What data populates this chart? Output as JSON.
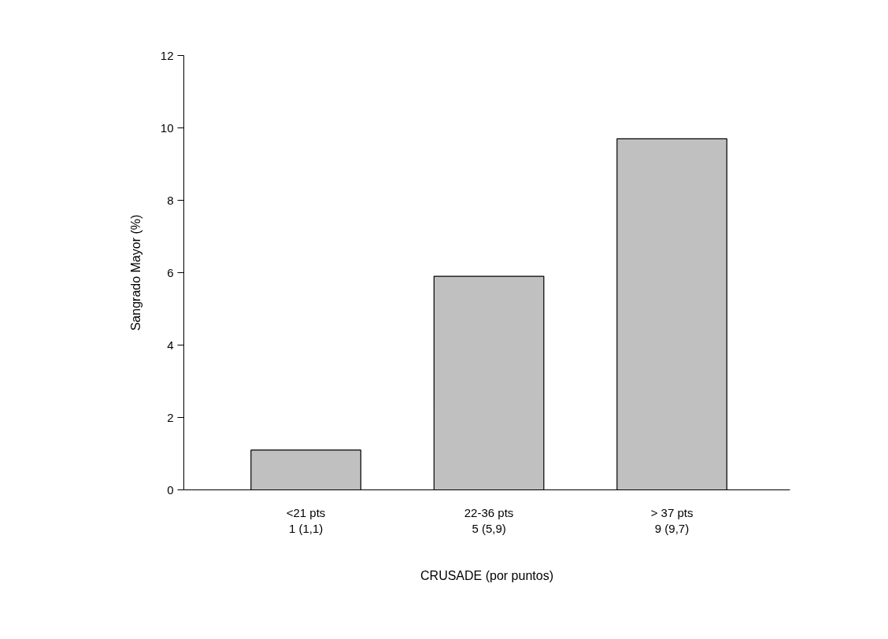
{
  "chart_data": {
    "type": "bar",
    "xlabel": "CRUSADE (por puntos)",
    "ylabel": "Sangrado Mayor (%)",
    "categories": [
      "<21 pts\n1 (1,1)",
      "22-36 pts\n5 (5,9)",
      "> 37 pts\n9 (9,7)"
    ],
    "values": [
      1.1,
      5.9,
      9.7
    ],
    "color": "#c0c0c0",
    "ylim": [
      0,
      12
    ],
    "yticks": [
      0,
      2,
      4,
      6,
      8,
      10,
      12
    ],
    "grid": false
  }
}
